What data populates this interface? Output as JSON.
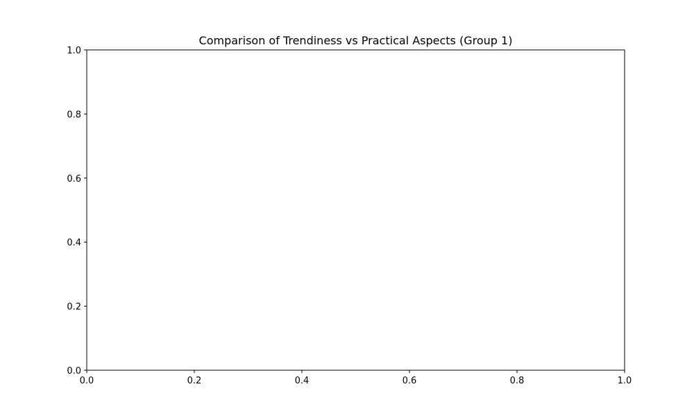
{
  "chart_data": {
    "type": "scatter",
    "title": "Comparison of Trendiness vs Practical Aspects (Group 1)",
    "xlabel": "",
    "ylabel": "",
    "xlim": [
      0.0,
      1.0
    ],
    "ylim": [
      0.0,
      1.0
    ],
    "x_ticks": [
      "0.0",
      "0.2",
      "0.4",
      "0.6",
      "0.8",
      "1.0"
    ],
    "y_ticks": [
      "0.0",
      "0.2",
      "0.4",
      "0.6",
      "0.8",
      "1.0"
    ],
    "grid": false,
    "series": []
  }
}
